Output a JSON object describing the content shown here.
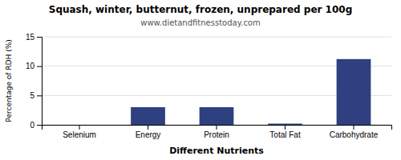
{
  "chart_data": {
    "type": "bar",
    "title": "Squash, winter, butternut, frozen, unprepared per 100g",
    "subtitle": "www.dietandfitnesstoday.com",
    "xlabel": "Different Nutrients",
    "ylabel": "Percentage of RDH (%)",
    "categories": [
      "Selenium",
      "Energy",
      "Protein",
      "Total Fat",
      "Carbohydrate"
    ],
    "values": [
      0.0,
      3.0,
      3.0,
      0.2,
      11.2
    ],
    "color": "#2e4080",
    "ylim": [
      0,
      15
    ],
    "yticks": [
      0,
      5,
      10,
      15
    ],
    "grid": true
  }
}
